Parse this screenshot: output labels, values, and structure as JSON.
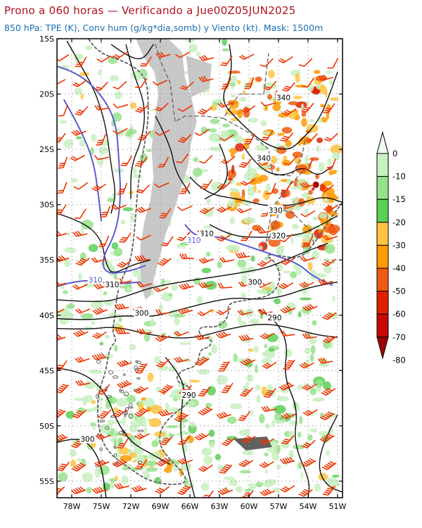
{
  "title": "Prono a 060 horas — Verificando a Jue00Z05JUN2025",
  "subtitle": "850 hPa: TPE (K), Conv hum (g/kg*dia,somb) y Viento (kt). Mask: 1500m",
  "lat_ticks": [
    "15S",
    "20S",
    "25S",
    "30S",
    "35S",
    "40S",
    "45S",
    "50S",
    "55S"
  ],
  "lon_ticks": [
    "78W",
    "75W",
    "72W",
    "69W",
    "66W",
    "63W",
    "60W",
    "57W",
    "54W",
    "51W"
  ],
  "contour_labels": [
    {
      "text": "340",
      "lon": -56.5,
      "lat": -20.3
    },
    {
      "text": "340",
      "lon": -58.5,
      "lat": -25.8
    },
    {
      "text": "330",
      "lon": -57.3,
      "lat": -30.5
    },
    {
      "text": "320",
      "lon": -57.0,
      "lat": -32.8
    },
    {
      "text": "310",
      "lon": -64.3,
      "lat": -32.6
    },
    {
      "text": "310",
      "lon": -65.6,
      "lat": -33.2
    },
    {
      "text": "310",
      "lon": -75.6,
      "lat": -36.8
    },
    {
      "text": "310",
      "lon": -73.9,
      "lat": -37.2
    },
    {
      "text": "300",
      "lon": -59.4,
      "lat": -37.0
    },
    {
      "text": "300",
      "lon": -70.9,
      "lat": -39.8
    },
    {
      "text": "290",
      "lon": -57.4,
      "lat": -40.2
    },
    {
      "text": "290",
      "lon": -66.1,
      "lat": -47.2
    },
    {
      "text": "300",
      "lon": -76.4,
      "lat": -51.2
    }
  ],
  "colorbar": {
    "labels": [
      "0",
      "-10",
      "-15",
      "-20",
      "-30",
      "-40",
      "-50",
      "-60",
      "-70",
      "-80"
    ],
    "colors": [
      "#f0fcf0",
      "#c8f0c0",
      "#96e28c",
      "#5ccf56",
      "#ffc440",
      "#ff9a00",
      "#f05a10",
      "#e02000",
      "#c80800",
      "#a00000"
    ]
  },
  "colors": {
    "title": "#b0101a",
    "subtitle": "#1a6fb3",
    "contour": "#101010",
    "contour_310": "#5a5ad0",
    "wind": "#ee3300",
    "mask": "#c8c8c8",
    "coast": "#606060",
    "grid": "#a0a0a0"
  }
}
